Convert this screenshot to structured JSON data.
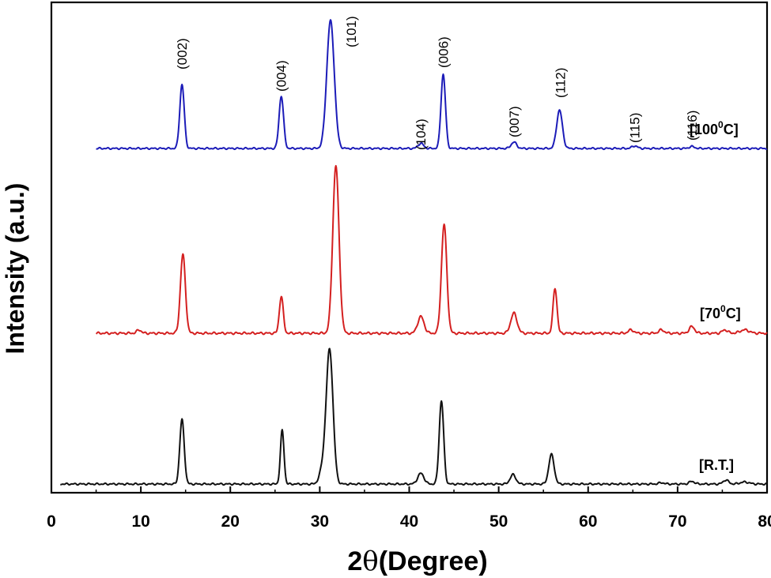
{
  "chart_data": {
    "type": "line",
    "xlabel_prefix": "2",
    "xlabel_symbol": "θ",
    "xlabel_rest": "(Degree)",
    "ylabel": "Intensity (a.u.)",
    "xlim": [
      0,
      80
    ],
    "xticks": [
      "0",
      "10",
      "20",
      "30",
      "40",
      "50",
      "60",
      "70",
      "80"
    ],
    "grid": false,
    "series": [
      {
        "name": "[100⁰C]",
        "name_pre": "[100",
        "name_sup": "0",
        "name_post": "C]",
        "color": "#1c1cb8",
        "x_start": 5,
        "x_end": 80,
        "peaks": [
          {
            "x": 14.6,
            "h": 0.5,
            "w": 0.25
          },
          {
            "x": 25.7,
            "h": 0.41,
            "w": 0.25
          },
          {
            "x": 31.2,
            "h": 1.0,
            "w": 0.42
          },
          {
            "x": 41.3,
            "h": 0.04,
            "w": 0.3
          },
          {
            "x": 43.8,
            "h": 0.58,
            "w": 0.25
          },
          {
            "x": 51.7,
            "h": 0.05,
            "w": 0.3
          },
          {
            "x": 56.8,
            "h": 0.3,
            "w": 0.32
          },
          {
            "x": 65.2,
            "h": 0.02,
            "w": 0.3
          },
          {
            "x": 71.6,
            "h": 0.015,
            "w": 0.3
          }
        ]
      },
      {
        "name": "[70⁰C]",
        "name_pre": "[70",
        "name_sup": "0",
        "name_post": "C]",
        "color": "#d42020",
        "x_start": 5,
        "x_end": 80,
        "peaks": [
          {
            "x": 9.8,
            "h": 0.02,
            "w": 0.25
          },
          {
            "x": 14.7,
            "h": 0.47,
            "w": 0.28
          },
          {
            "x": 25.7,
            "h": 0.22,
            "w": 0.22
          },
          {
            "x": 31.8,
            "h": 1.0,
            "w": 0.35
          },
          {
            "x": 41.3,
            "h": 0.1,
            "w": 0.35
          },
          {
            "x": 43.9,
            "h": 0.65,
            "w": 0.3
          },
          {
            "x": 51.7,
            "h": 0.12,
            "w": 0.35
          },
          {
            "x": 56.3,
            "h": 0.27,
            "w": 0.22
          },
          {
            "x": 64.8,
            "h": 0.02,
            "w": 0.3
          },
          {
            "x": 68.2,
            "h": 0.02,
            "w": 0.3
          },
          {
            "x": 71.6,
            "h": 0.04,
            "w": 0.3
          },
          {
            "x": 75.3,
            "h": 0.02,
            "w": 0.3
          },
          {
            "x": 77.5,
            "h": 0.02,
            "w": 0.5
          }
        ]
      },
      {
        "name": "[R.T.]",
        "color": "#111111",
        "x_start": 1,
        "x_end": 80,
        "peaks": [
          {
            "x": 14.6,
            "h": 0.48,
            "w": 0.25
          },
          {
            "x": 25.8,
            "h": 0.4,
            "w": 0.2
          },
          {
            "x": 31.1,
            "h": 1.0,
            "w": 0.38
          },
          {
            "x": 30.3,
            "h": 0.1,
            "w": 0.35
          },
          {
            "x": 41.3,
            "h": 0.08,
            "w": 0.35
          },
          {
            "x": 43.6,
            "h": 0.62,
            "w": 0.25
          },
          {
            "x": 51.6,
            "h": 0.07,
            "w": 0.32
          },
          {
            "x": 55.9,
            "h": 0.22,
            "w": 0.3
          },
          {
            "x": 68.2,
            "h": 0.01,
            "w": 0.3
          },
          {
            "x": 71.6,
            "h": 0.02,
            "w": 0.3
          },
          {
            "x": 75.4,
            "h": 0.03,
            "w": 0.3
          },
          {
            "x": 77.5,
            "h": 0.015,
            "w": 0.5
          }
        ]
      }
    ],
    "annotations": [
      {
        "text": "(002)",
        "x": 14.6
      },
      {
        "text": "(004)",
        "x": 25.7
      },
      {
        "text": "(101)",
        "x": 33.5
      },
      {
        "text": "(104)",
        "x": 41.3
      },
      {
        "text": "(006)",
        "x": 43.8
      },
      {
        "text": "(007)",
        "x": 51.7
      },
      {
        "text": "(112)",
        "x": 56.9
      },
      {
        "text": "(115)",
        "x": 65.2
      },
      {
        "text": "(116)",
        "x": 71.6
      }
    ]
  }
}
